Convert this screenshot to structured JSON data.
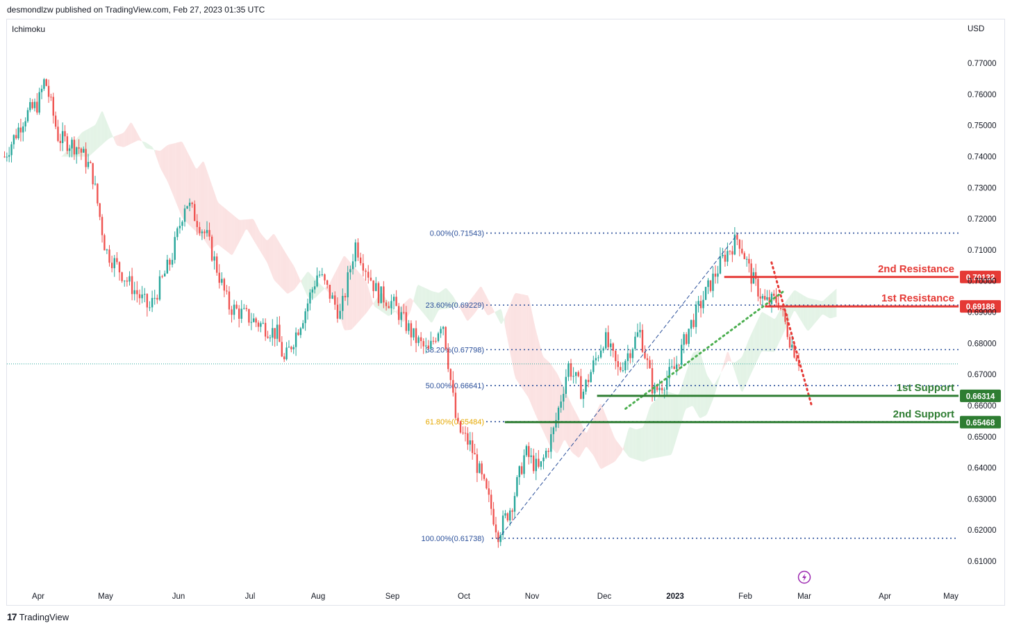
{
  "header": {
    "text": "desmondlzw published on TradingView.com, Feb 27, 2023 01:35 UTC"
  },
  "footer": {
    "logo_glyph": "17",
    "brand": "TradingView"
  },
  "indicator_label": "Ichimoku",
  "currency": "USD",
  "colors": {
    "bull": "#26a69a",
    "bear": "#ef5350",
    "resistance": "#e53935",
    "support": "#2e7d32",
    "fib": "#2a4f9a",
    "fib_golden": "#e6a800",
    "cloud_green": "#e3f3e6",
    "cloud_red": "#fbe2e2"
  },
  "chart_data": {
    "type": "candlestick",
    "ylim": [
      0.602,
      0.782
    ],
    "y_ticks": [
      "0.77000",
      "0.76000",
      "0.75000",
      "0.74000",
      "0.73000",
      "0.72000",
      "0.71000",
      "0.70000",
      "0.69000",
      "0.68000",
      "0.67000",
      "0.66000",
      "0.65000",
      "0.64000",
      "0.63000",
      "0.62000",
      "0.61000"
    ],
    "y_tick_values": [
      0.77,
      0.76,
      0.75,
      0.74,
      0.73,
      0.72,
      0.71,
      0.7,
      0.69,
      0.68,
      0.67,
      0.66,
      0.65,
      0.64,
      0.63,
      0.62,
      0.61
    ],
    "x_labels": [
      {
        "label": "Apr",
        "t": 1.5
      },
      {
        "label": "May",
        "t": 2.5
      },
      {
        "label": "Jun",
        "t": 3.5
      },
      {
        "label": "Jul",
        "t": 4.5
      },
      {
        "label": "Aug",
        "t": 5.5
      },
      {
        "label": "Sep",
        "t": 6.5
      },
      {
        "label": "Oct",
        "t": 7.5
      },
      {
        "label": "Nov",
        "t": 8.5
      },
      {
        "label": "Dec",
        "t": 9.5
      },
      {
        "label": "2023",
        "t": 10.5,
        "bold": true
      },
      {
        "label": "Feb",
        "t": 11.5
      },
      {
        "label": "Mar",
        "t": 12.4
      },
      {
        "label": "Apr",
        "t": 13.5
      },
      {
        "label": "May",
        "t": 14.5
      }
    ],
    "price_path": [
      [
        1.0,
        0.74
      ],
      [
        1.3,
        0.753
      ],
      [
        1.5,
        0.757
      ],
      [
        1.6,
        0.765
      ],
      [
        1.8,
        0.746
      ],
      [
        2.1,
        0.743
      ],
      [
        2.3,
        0.735
      ],
      [
        2.5,
        0.71
      ],
      [
        2.8,
        0.7
      ],
      [
        3.1,
        0.691
      ],
      [
        3.4,
        0.707
      ],
      [
        3.6,
        0.726
      ],
      [
        3.9,
        0.714
      ],
      [
        4.2,
        0.692
      ],
      [
        4.5,
        0.688
      ],
      [
        4.9,
        0.683
      ],
      [
        5.0,
        0.674
      ],
      [
        5.3,
        0.69
      ],
      [
        5.5,
        0.703
      ],
      [
        5.8,
        0.689
      ],
      [
        6.0,
        0.712
      ],
      [
        6.3,
        0.696
      ],
      [
        6.5,
        0.693
      ],
      [
        6.8,
        0.682
      ],
      [
        7.0,
        0.677
      ],
      [
        7.2,
        0.688
      ],
      [
        7.4,
        0.653
      ],
      [
        7.6,
        0.647
      ],
      [
        7.9,
        0.627
      ],
      [
        8.0,
        0.619
      ],
      [
        8.2,
        0.628
      ],
      [
        8.4,
        0.645
      ],
      [
        8.6,
        0.639
      ],
      [
        8.8,
        0.652
      ],
      [
        9.0,
        0.673
      ],
      [
        9.2,
        0.664
      ],
      [
        9.5,
        0.682
      ],
      [
        9.7,
        0.671
      ],
      [
        10.0,
        0.684
      ],
      [
        10.2,
        0.664
      ],
      [
        10.5,
        0.672
      ],
      [
        10.7,
        0.685
      ],
      [
        11.0,
        0.699
      ],
      [
        11.2,
        0.708
      ],
      [
        11.4,
        0.714
      ],
      [
        11.6,
        0.701
      ],
      [
        11.8,
        0.693
      ],
      [
        12.0,
        0.694
      ],
      [
        12.2,
        0.68
      ],
      [
        12.35,
        0.673
      ]
    ],
    "fib_levels": [
      {
        "label": "0.00%(0.71543)",
        "value": 0.71543
      },
      {
        "label": "23.60%(0.69229)",
        "value": 0.69229
      },
      {
        "label": "38.20%(0.67798)",
        "value": 0.67798
      },
      {
        "label": "50.00%(0.66641)",
        "value": 0.66641
      },
      {
        "label": "61.80%(0.65484)",
        "value": 0.65484,
        "golden": true
      },
      {
        "label": "100.00%(0.61738)",
        "value": 0.61738
      }
    ],
    "levels": [
      {
        "name": "2nd Resistance",
        "value": 0.70132,
        "price_label": "0.70132",
        "kind": "resistance",
        "start_t": 11.2
      },
      {
        "name": "1st Resistance",
        "value": 0.69188,
        "price_label": "0.69188",
        "kind": "resistance",
        "start_t": 11.8
      },
      {
        "name": "1st Support",
        "value": 0.66314,
        "price_label": "0.66314",
        "kind": "support",
        "start_t": 9.4
      },
      {
        "name": "2nd Support",
        "value": 0.65468,
        "price_label": "0.65468",
        "kind": "support",
        "start_t": 8.1
      }
    ],
    "current_price": 0.6734,
    "trendlines": [
      {
        "style": "dashed",
        "color": "#2a4f9a",
        "from": [
          8.0,
          0.617
        ],
        "to": [
          11.4,
          0.7154
        ]
      },
      {
        "style": "dotted",
        "color": "#4caf50",
        "from": [
          9.8,
          0.659
        ],
        "to": [
          12.1,
          0.697
        ]
      },
      {
        "style": "dotted",
        "color": "#e53935",
        "from": [
          11.9,
          0.706
        ],
        "to": [
          12.5,
          0.66
        ]
      }
    ]
  }
}
